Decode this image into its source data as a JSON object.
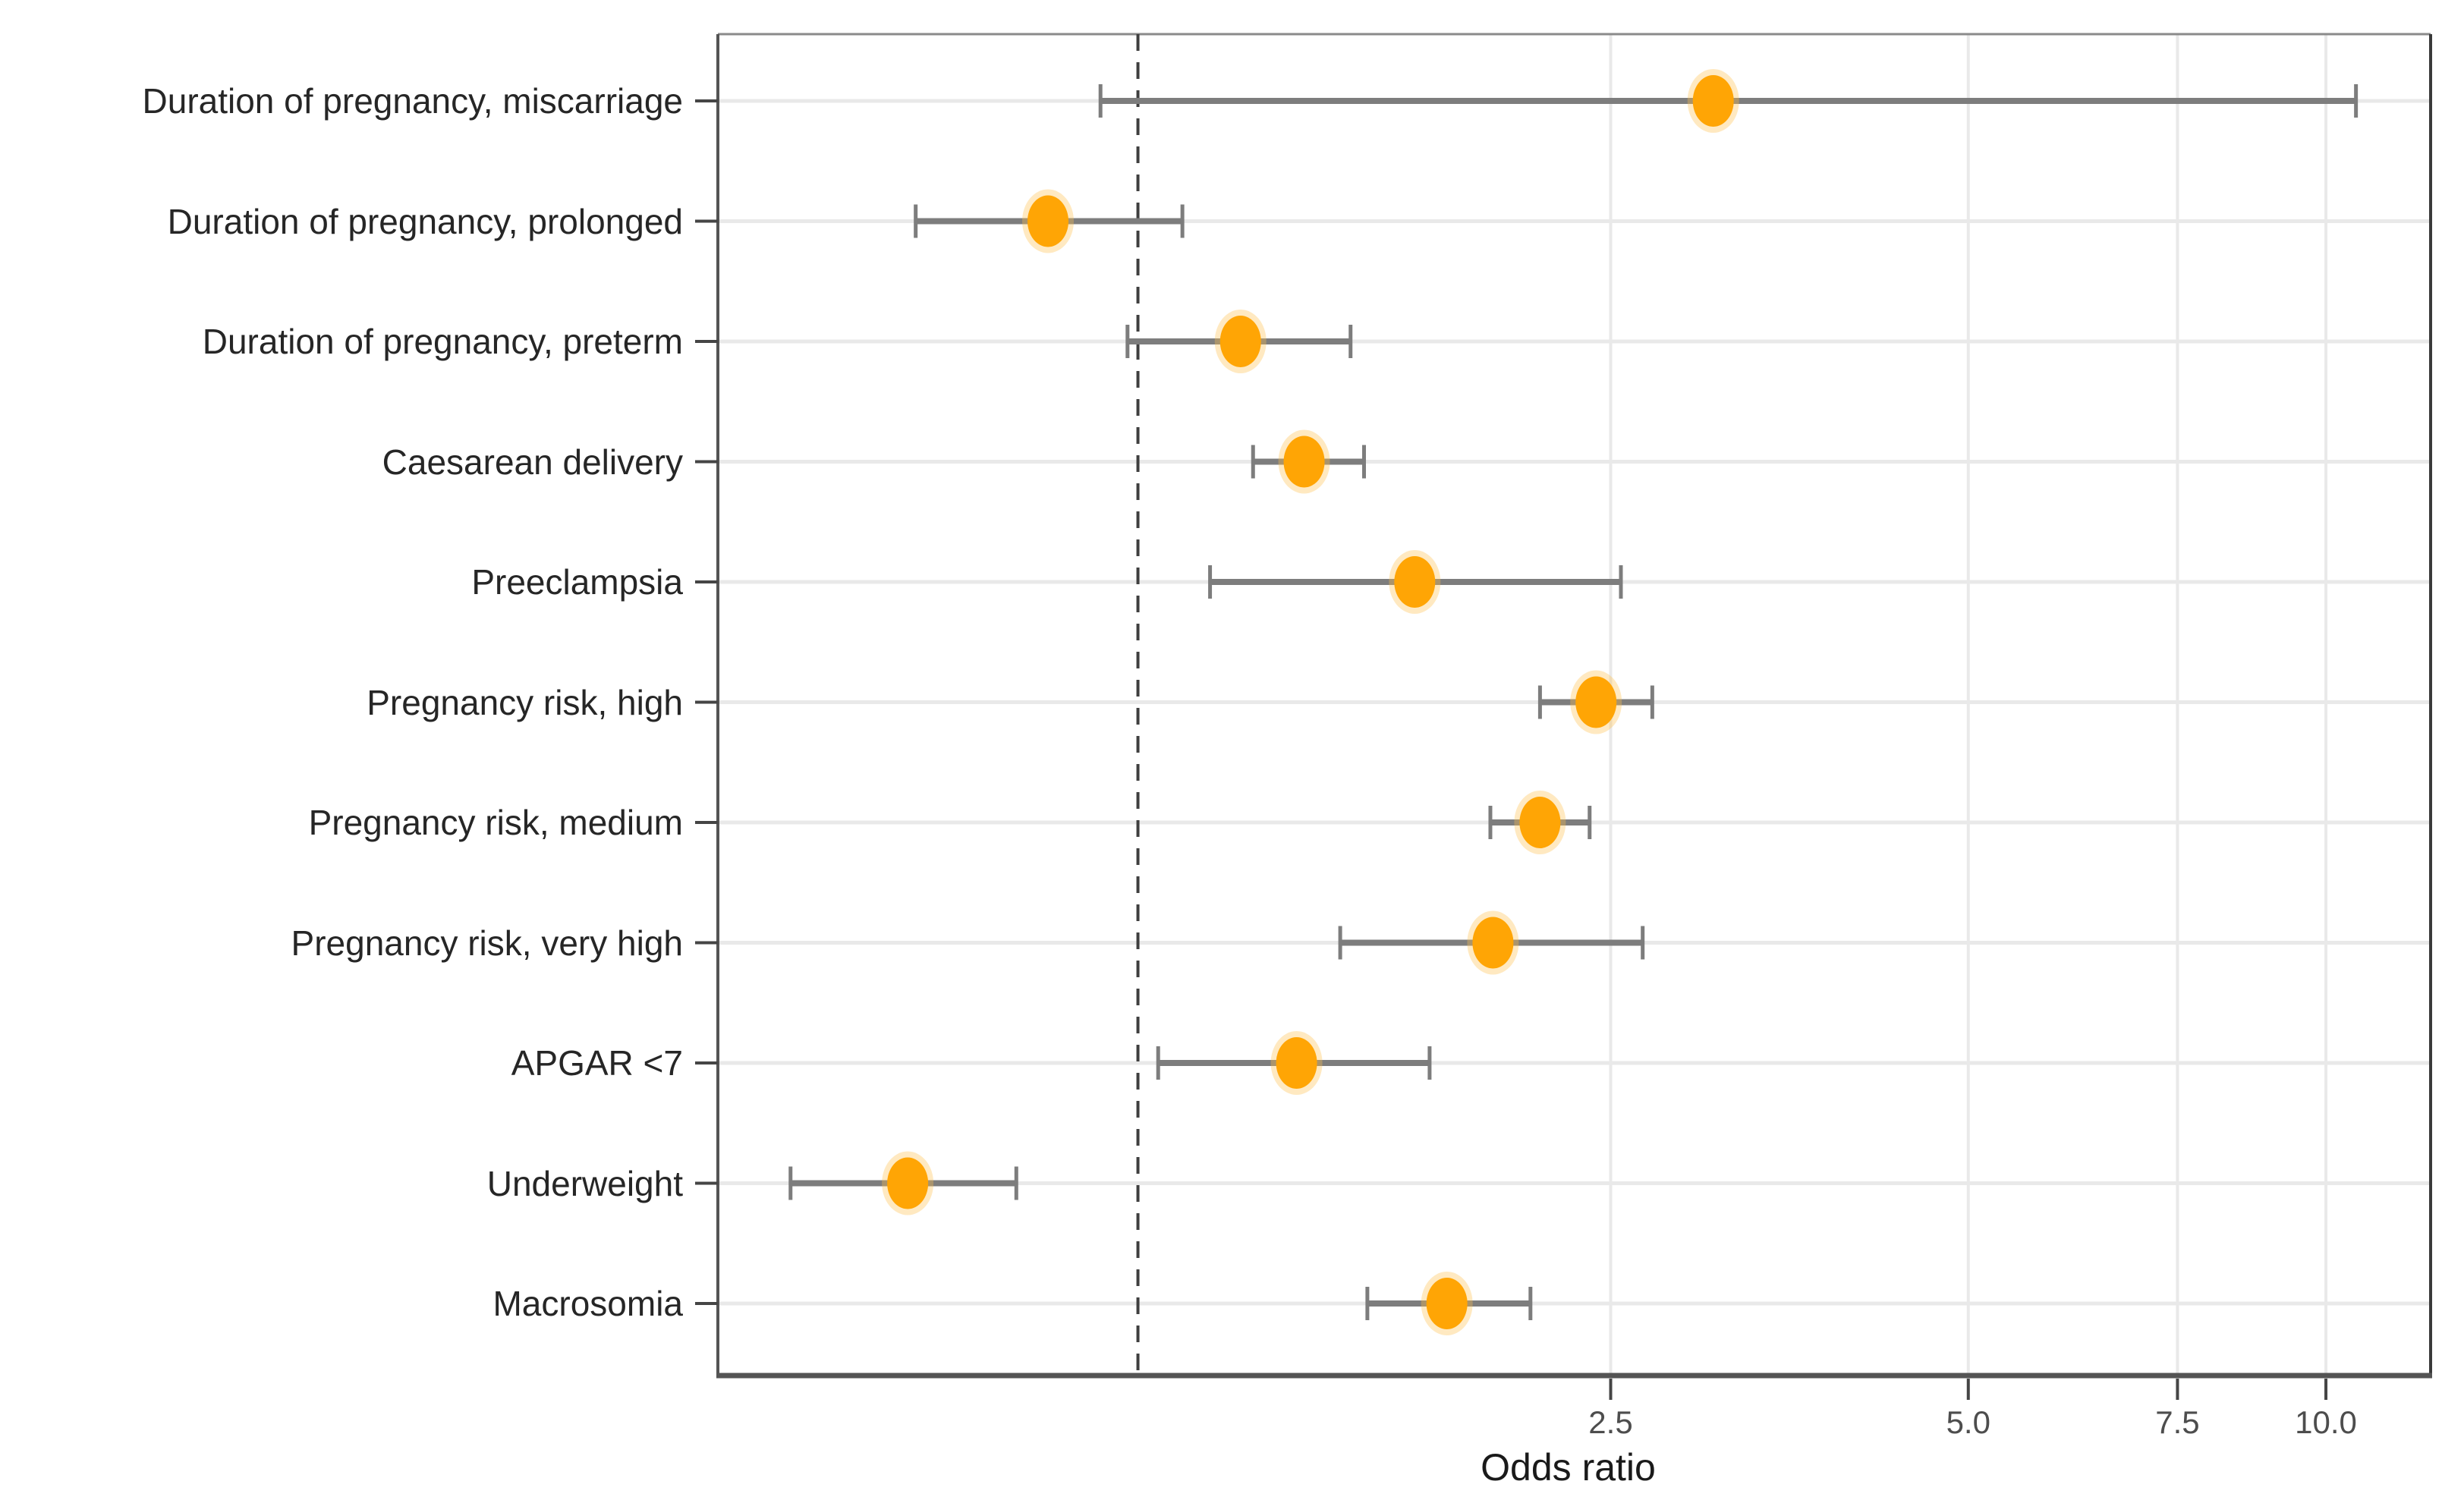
{
  "figure": {
    "background": "#ffffff"
  },
  "chart_data": {
    "type": "scatter",
    "subtype": "forest-plot-odds-ratios",
    "title": "",
    "xlabel": "Odds ratio",
    "ylabel": "",
    "x_scale": "log10",
    "x_tick_labels": [
      "2.5",
      "5.0",
      "7.5",
      "10.0"
    ],
    "x_tick_values": [
      2.5,
      5.0,
      7.5,
      10.0
    ],
    "xlim": [
      0.443,
      12.25
    ],
    "reference_line_x": 1.0,
    "grid": "major",
    "legend": false,
    "categories": [
      "Duration of pregnancy, miscarriage",
      "Duration of pregnancy, prolonged",
      "Duration of pregnancy, preterm",
      "Caesarean delivery",
      "Preeclampsia",
      "Pregnancy risk, high",
      "Pregnancy risk, medium",
      "Pregnancy risk, very high",
      "APGAR <7",
      "Underweight",
      "Macrosomia"
    ],
    "series": [
      {
        "name": "odds_ratio",
        "values": [
          3.05,
          0.84,
          1.22,
          1.38,
          1.71,
          2.43,
          2.18,
          1.99,
          1.36,
          0.64,
          1.82
        ]
      },
      {
        "name": "ci_lower",
        "values": [
          0.93,
          0.65,
          0.98,
          1.25,
          1.15,
          2.18,
          1.98,
          1.48,
          1.04,
          0.51,
          1.56
        ]
      },
      {
        "name": "ci_upper",
        "values": [
          10.6,
          1.09,
          1.51,
          1.55,
          2.55,
          2.71,
          2.4,
          2.66,
          1.76,
          0.79,
          2.14
        ]
      }
    ],
    "colors": {
      "marker": "#FFA505",
      "marker_halo": "#FFC14D",
      "ci_bar": "#7d7d7d",
      "reference_line": "#3f3f3f",
      "gridline": "#e9e9e9",
      "panel_border_dark": "#545454",
      "panel_border_light": "#8a8a8a",
      "axis_tick": "#454545",
      "axis_text": "#4d4d4d",
      "label_text": "#262626",
      "background": "#ffffff"
    }
  }
}
